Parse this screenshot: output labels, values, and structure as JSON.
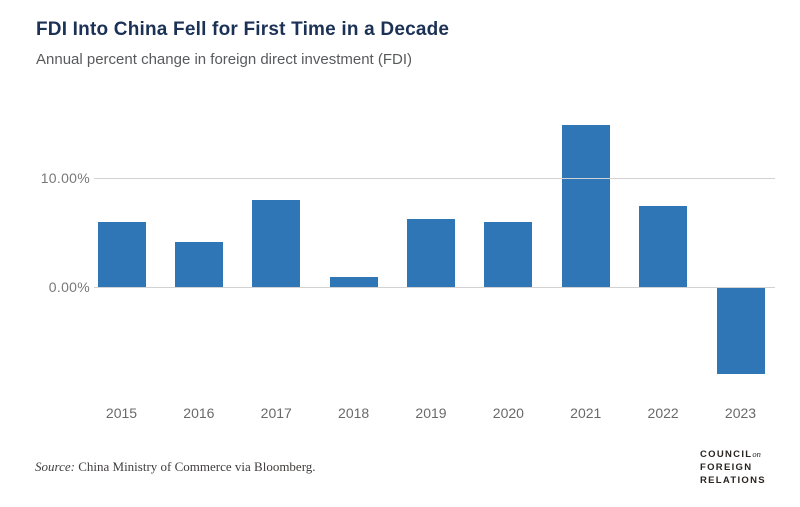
{
  "header": {
    "title": "FDI Into China Fell for First Time in a Decade",
    "subtitle": "Annual percent change in foreign direct investment (FDI)"
  },
  "chart_data": {
    "type": "bar",
    "title": "FDI Into China Fell for First Time in a Decade",
    "subtitle": "Annual percent change in foreign direct investment (FDI)",
    "categories": [
      "2015",
      "2016",
      "2017",
      "2018",
      "2019",
      "2020",
      "2021",
      "2022",
      "2023"
    ],
    "values": [
      6.0,
      4.1,
      8.0,
      0.9,
      6.2,
      6.0,
      14.9,
      7.4,
      -8.0
    ],
    "xlabel": "",
    "ylabel": "",
    "ylim": [
      -9,
      16
    ],
    "yticks": [
      {
        "label": "10.00%",
        "value": 10
      },
      {
        "label": "0.00%",
        "value": 0
      }
    ],
    "grid": "horizontal",
    "legend": "none",
    "bar_color": "#2e76b6",
    "gridline_color": "#d2d2d2"
  },
  "footer": {
    "source_label": "Source:",
    "source_text": " China Ministry of Commerce via Bloomberg.",
    "logo": {
      "line1": "COUNCIL",
      "line1_suffix": "on",
      "line2": "FOREIGN",
      "line3": "RELATIONS"
    }
  },
  "colors": {
    "title": "#1c3156",
    "subtitle": "#595a5c",
    "bar": "#2e76b6",
    "gridline": "#d2d2d2",
    "axis_text": "#77787a"
  }
}
